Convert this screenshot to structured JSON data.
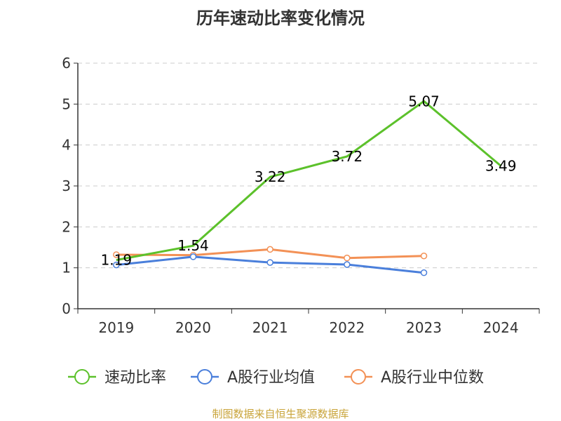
{
  "chart_data": {
    "type": "line",
    "title": "历年速动比率变化情况",
    "categories": [
      "2019",
      "2020",
      "2021",
      "2022",
      "2023",
      "2024"
    ],
    "ylim": [
      0,
      6
    ],
    "yticks": [
      0,
      1,
      2,
      3,
      4,
      5,
      6
    ],
    "grid": true,
    "legend": "bottom",
    "series": [
      {
        "name": "速动比率",
        "color": "#5cc12b",
        "values": [
          1.19,
          1.54,
          3.22,
          3.72,
          5.07,
          3.49
        ],
        "labels": [
          "1.19",
          "1.54",
          "3.22",
          "3.72",
          "5.07",
          "3.49"
        ]
      },
      {
        "name": "A股行业均值",
        "color": "#4a7fdb",
        "values": [
          1.07,
          1.27,
          1.13,
          1.08,
          0.88,
          null
        ]
      },
      {
        "name": "A股行业中位数",
        "color": "#f39156",
        "values": [
          1.32,
          1.31,
          1.45,
          1.24,
          1.29,
          null
        ]
      }
    ]
  },
  "source": "制图数据来自恒生聚源数据库"
}
